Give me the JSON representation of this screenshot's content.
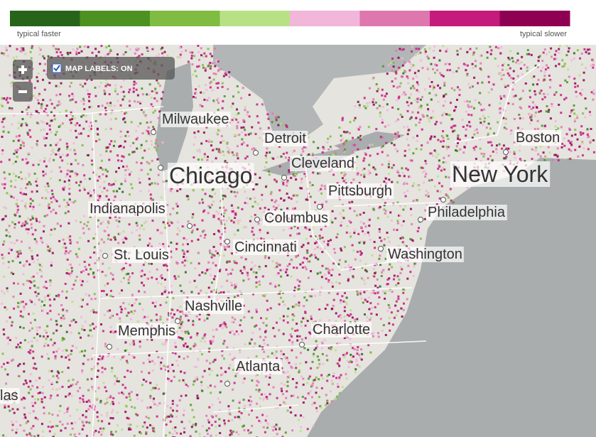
{
  "legend": {
    "colors": [
      "#276419",
      "#4d9221",
      "#7fbc41",
      "#b8e186",
      "#f1b6da",
      "#de77ae",
      "#c51b7d",
      "#8e0152"
    ],
    "low_label": "typical faster",
    "high_label": "typical slower"
  },
  "map_labels_toggle": {
    "label": "MAP LABELS: ON"
  },
  "cities": [
    "Milwaukee",
    "Detroit",
    "Cleveland",
    "Chicago",
    "New York",
    "Pittsburgh",
    "Indianapolis",
    "Columbus",
    "Philadelphia",
    "Cincinnati",
    "St. Louis",
    "Washington",
    "Nashville",
    "Memphis",
    "Charlotte",
    "Atlanta",
    "Boston",
    "las"
  ]
}
